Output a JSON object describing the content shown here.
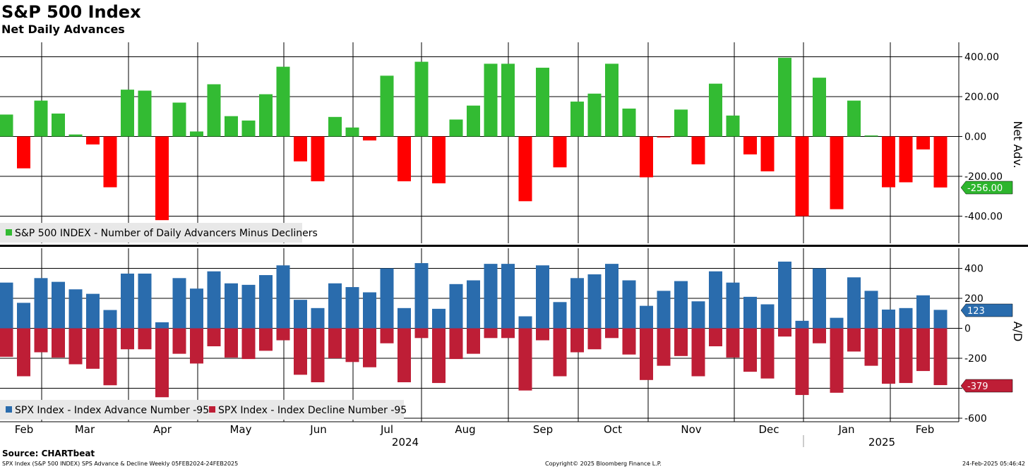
{
  "title": "S&P 500 Index",
  "subtitle": "Net Daily Advances",
  "footer": {
    "source": "Source: CHARTbeat",
    "description": "SPX Index (S&P 500 INDEX) SPS Advance & Decline  Weekly 05FEB2024-24FEB2025",
    "copyright": "Copyright© 2025 Bloomberg Finance L.P.",
    "date": "24-Feb-2025 05:46:42"
  },
  "colors": {
    "positive": "#33bb33",
    "negative": "#ff0000",
    "advance": "#2a6cad",
    "decline": "#be1e36",
    "grid": "#000000"
  },
  "chart_data": [
    {
      "type": "bar",
      "panel": "top",
      "ylabel": "Net Adv.",
      "ylim": [
        -520,
        480
      ],
      "yticks": [
        "400.00",
        "200.00",
        "0.00",
        "-200.00",
        "-400.00"
      ],
      "ytick_values": [
        400,
        200,
        0,
        -200,
        -400
      ],
      "last_value_label": "-256.00",
      "legend": [
        "S&P 500 INDEX - Number of Daily Advancers Minus Decliners"
      ],
      "series": [
        {
          "name": "S&P 500 INDEX - Number of Daily Advancers Minus Decliners",
          "values": [
            110,
            -160,
            180,
            115,
            10,
            -40,
            -255,
            235,
            230,
            -420,
            170,
            25,
            262,
            102,
            80,
            212,
            350,
            -125,
            -225,
            98,
            45,
            -20,
            305,
            -225,
            375,
            -235,
            85,
            155,
            365,
            365,
            -325,
            345,
            -155,
            175,
            215,
            365,
            140,
            -205,
            -5,
            135,
            -140,
            265,
            105,
            -90,
            -175,
            395,
            -400,
            295,
            -365,
            180,
            5,
            -255,
            -230,
            -65,
            -256
          ]
        }
      ]
    },
    {
      "type": "bar",
      "panel": "bottom",
      "ylabel": "A/D",
      "ylim": [
        -650,
        550
      ],
      "yticks": [
        "400",
        "200",
        "0",
        "-200",
        "-400",
        "-600"
      ],
      "ytick_values": [
        400,
        200,
        0,
        -200,
        -400,
        -600
      ],
      "last_value_labels": [
        "123",
        "-379"
      ],
      "legend": [
        "SPX Index - Index Advance Number -95",
        "SPX Index - Index Decline Number -95"
      ],
      "series": [
        {
          "name": "SPX Index - Index Advance Number -95",
          "values": [
            305,
            170,
            335,
            310,
            260,
            230,
            122,
            365,
            365,
            40,
            335,
            265,
            380,
            300,
            290,
            355,
            420,
            190,
            135,
            300,
            275,
            240,
            400,
            135,
            435,
            130,
            295,
            320,
            430,
            430,
            80,
            420,
            175,
            335,
            360,
            430,
            320,
            150,
            250,
            315,
            180,
            380,
            305,
            210,
            160,
            445,
            50,
            400,
            70,
            340,
            250,
            125,
            135,
            220,
            123
          ]
        },
        {
          "name": "SPX Index - Index Decline Number -95",
          "values": [
            -190,
            -320,
            -160,
            -195,
            -240,
            -270,
            -380,
            -140,
            -140,
            -460,
            -170,
            -235,
            -120,
            -195,
            -205,
            -150,
            -80,
            -310,
            -360,
            -200,
            -225,
            -260,
            -100,
            -360,
            -65,
            -365,
            -205,
            -170,
            -65,
            -65,
            -415,
            -80,
            -320,
            -160,
            -140,
            -65,
            -175,
            -345,
            -250,
            -185,
            -320,
            -120,
            -195,
            -290,
            -335,
            -55,
            -445,
            -100,
            -430,
            -155,
            -250,
            -370,
            -365,
            -285,
            -379
          ]
        }
      ]
    }
  ],
  "x_axis": {
    "months": [
      "Feb",
      "Mar",
      "Apr",
      "May",
      "Jun",
      "Jul",
      "Aug",
      "Sep",
      "Oct",
      "Nov",
      "Dec",
      "Jan",
      "Feb"
    ],
    "years": [
      "2024",
      "2025"
    ]
  }
}
